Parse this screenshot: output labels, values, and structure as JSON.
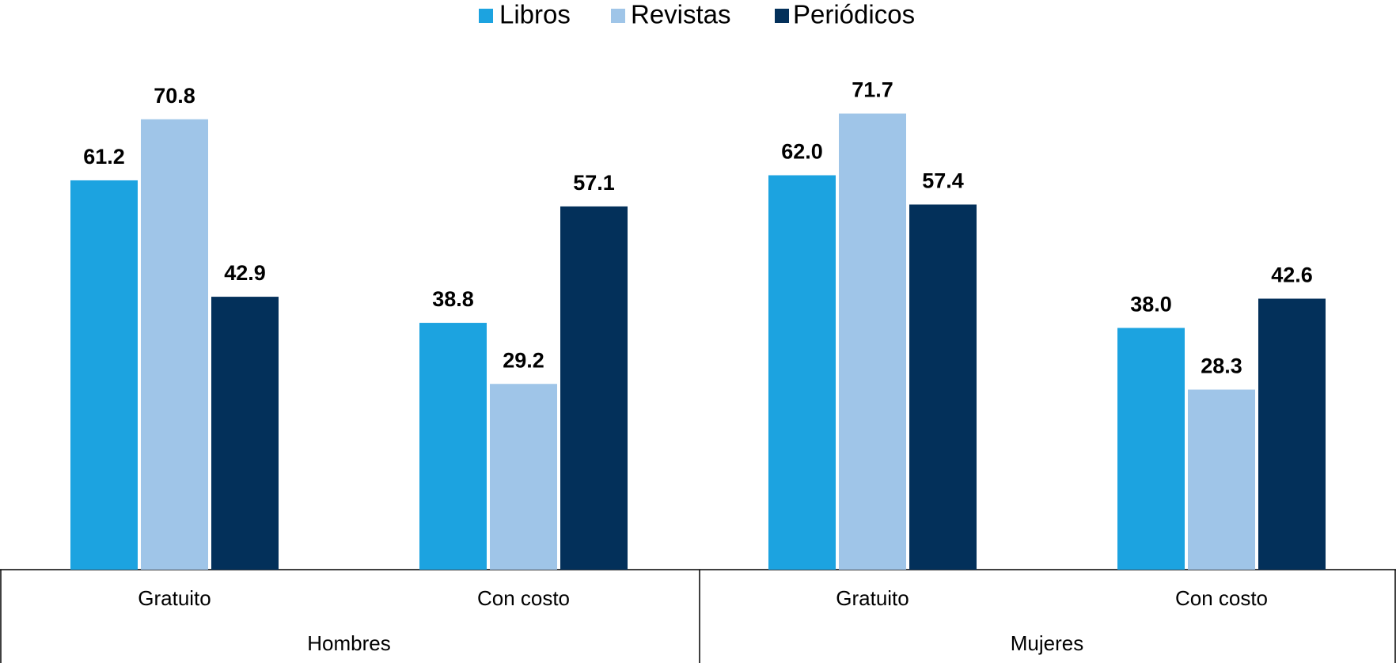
{
  "chart_data": {
    "type": "bar",
    "groups": [
      "Hombres",
      "Mujeres"
    ],
    "categories": [
      "Gratuito",
      "Con costo",
      "Gratuito",
      "Con costo"
    ],
    "series": [
      {
        "name": "Libros",
        "color": "#1ca3e0",
        "values": [
          61.2,
          38.8,
          62.0,
          38.0
        ],
        "value_labels": [
          "61.2",
          "38.8",
          "62.0",
          "38.0"
        ]
      },
      {
        "name": "Revistas",
        "color": "#9fc5e8",
        "values": [
          70.8,
          29.2,
          71.7,
          28.3
        ],
        "value_labels": [
          "70.8",
          "29.2",
          "71.7",
          "28.3"
        ]
      },
      {
        "name": "Periódicos",
        "color": "#03305a",
        "values": [
          42.9,
          57.1,
          57.4,
          42.6
        ],
        "value_labels": [
          "42.9",
          "57.1",
          "57.4",
          "42.6"
        ]
      }
    ],
    "legend": "top"
  }
}
